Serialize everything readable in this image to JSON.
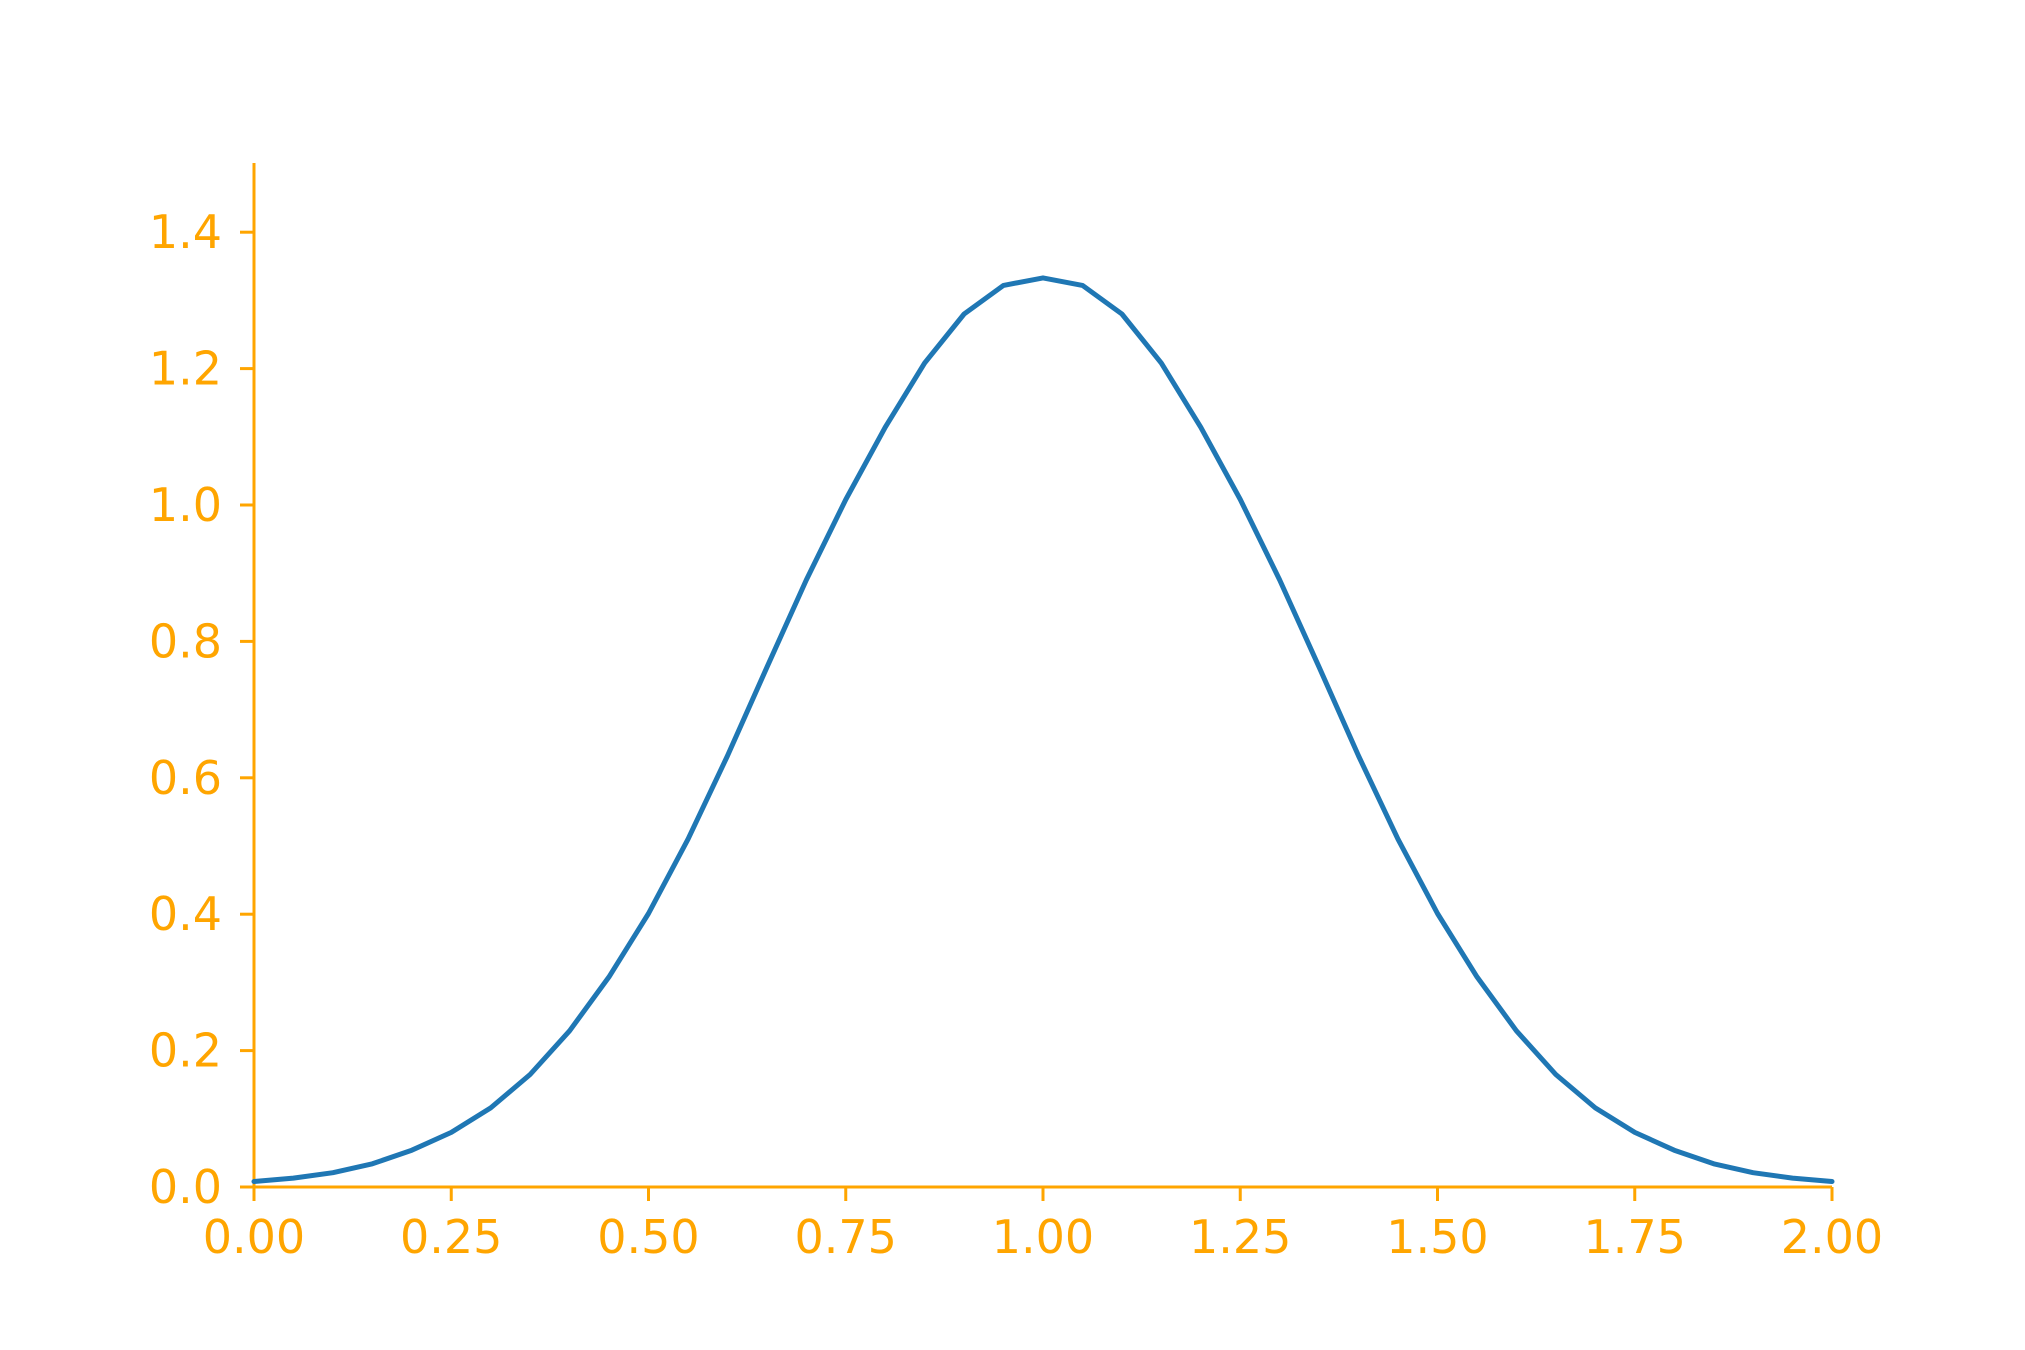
{
  "chart_data": {
    "type": "line",
    "title": "",
    "xlabel": "",
    "ylabel": "",
    "xlim": [
      0,
      2
    ],
    "ylim": [
      0,
      1.5
    ],
    "x_ticks": [
      {
        "value": 0,
        "label": "0.00"
      },
      {
        "value": 0.25,
        "label": "0.25"
      },
      {
        "value": 0.5,
        "label": "0.50"
      },
      {
        "value": 0.75,
        "label": "0.75"
      },
      {
        "value": 1,
        "label": "1.00"
      },
      {
        "value": 1.25,
        "label": "1.25"
      },
      {
        "value": 1.5,
        "label": "1.50"
      },
      {
        "value": 1.75,
        "label": "1.75"
      },
      {
        "value": 2,
        "label": "2.00"
      }
    ],
    "y_ticks": [
      {
        "value": 0,
        "label": "0.0"
      },
      {
        "value": 0.2,
        "label": "0.2"
      },
      {
        "value": 0.4,
        "label": "0.4"
      },
      {
        "value": 0.6,
        "label": "0.6"
      },
      {
        "value": 0.8,
        "label": "0.8"
      },
      {
        "value": 1,
        "label": "1.0"
      },
      {
        "value": 1.2,
        "label": "1.2"
      },
      {
        "value": 1.4,
        "label": "1.4"
      }
    ],
    "grid": false,
    "axis_color": "#FFA500",
    "series": [
      {
        "color": "#1F77B4",
        "x": [
          0,
          0.05,
          0.1,
          0.15,
          0.2,
          0.25,
          0.3,
          0.35,
          0.4,
          0.45,
          0.5,
          0.55,
          0.6,
          0.65,
          0.7,
          0.75,
          0.8,
          0.85,
          0.9,
          0.95,
          1,
          1.05,
          1.1,
          1.15,
          1.2,
          1.25,
          1.3,
          1.35,
          1.4,
          1.45,
          1.5,
          1.55,
          1.6,
          1.65,
          1.7,
          1.75,
          1.8,
          1.85,
          1.9,
          1.95,
          2
        ],
        "y": [
          0.008,
          0.013,
          0.021,
          0.034,
          0.054,
          0.08,
          0.116,
          0.165,
          0.229,
          0.308,
          0.401,
          0.51,
          0.632,
          0.762,
          0.89,
          1.008,
          1.114,
          1.208,
          1.28,
          1.322,
          1.333,
          1.322,
          1.28,
          1.208,
          1.114,
          1.008,
          0.89,
          0.762,
          0.632,
          0.51,
          0.401,
          0.308,
          0.229,
          0.165,
          0.116,
          0.08,
          0.054,
          0.034,
          0.021,
          0.013,
          0.008
        ]
      }
    ]
  }
}
